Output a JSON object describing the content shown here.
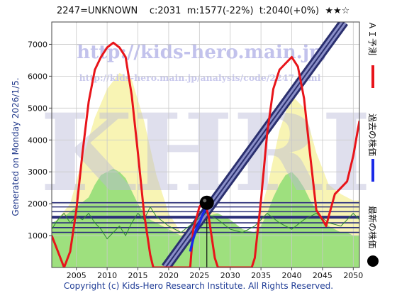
{
  "header": {
    "code": "2247=UNKNOWN",
    "current": "c:2031",
    "median": "m:1577(-22%)",
    "target": "t:2040(+0%)",
    "stars": "★★☆"
  },
  "generated_text": "Generated on Monday 2026/1/5.",
  "copyright": "Copyright (c) Kids-Hero Research Institute. All Rights Reserved.",
  "watermarks": {
    "url_main": "http://kids-hero.main.jp/",
    "url_sub": "http://kids-hero.main.jp/analysis/code/2247.html",
    "logo": "KHRI"
  },
  "legend": {
    "ai_forecast": "ＡＩ予測",
    "past_price": "過去の株価",
    "latest_price": "最新の株価",
    "colors": {
      "ai_forecast": "#e8141a",
      "past_price": "#1a2ae8",
      "latest_price": "#000000"
    }
  },
  "chart_data": {
    "type": "line",
    "xlim": [
      2001,
      2051
    ],
    "ylim": [
      0,
      7700
    ],
    "x_ticks": [
      2005,
      2010,
      2015,
      2020,
      2025,
      2030,
      2035,
      2040,
      2045,
      2050
    ],
    "y_ticks": [
      1000,
      2000,
      3000,
      4000,
      5000,
      6000,
      7000
    ],
    "grid": true,
    "horizontal_levels": [
      2031,
      1577,
      1900,
      1750,
      1400,
      1250,
      1100
    ],
    "vertical_marker_x": 2026.2,
    "latest_point": {
      "x": 2026.2,
      "y": 2031
    },
    "series": [
      {
        "key": "ai_forecast",
        "x": [
          2001,
          2002,
          2003,
          2004,
          2005,
          2006,
          2007,
          2008,
          2009,
          2010,
          2011,
          2012,
          2013,
          2014,
          2015,
          2016,
          2017,
          2017.5,
          2018,
          2023.5,
          2024,
          2025,
          2025.8,
          2026.5,
          2027.5,
          2028,
          2033.5,
          2034,
          2035,
          2036,
          2037,
          2038,
          2039,
          2040,
          2041,
          2042,
          2043,
          2044,
          2045,
          2045.6,
          2046,
          2047,
          2048,
          2049,
          2050,
          2051
        ],
        "y": [
          1000,
          500,
          0,
          500,
          1800,
          3600,
          5200,
          6200,
          6600,
          6900,
          7050,
          6900,
          6600,
          5400,
          3600,
          1700,
          400,
          0,
          0,
          0,
          1200,
          1900,
          2100,
          1600,
          300,
          0,
          0,
          300,
          2100,
          4200,
          5600,
          6200,
          6400,
          6600,
          6300,
          5300,
          3500,
          1800,
          1500,
          1300,
          1600,
          2300,
          2500,
          2700,
          3500,
          4600
        ]
      },
      {
        "key": "past_price",
        "x": [
          2023.5,
          2024,
          2024.5,
          2025,
          2025.5,
          2026,
          2026.2
        ],
        "y": [
          500,
          900,
          1200,
          1400,
          1650,
          1850,
          2031
        ]
      },
      {
        "key": "trend_line",
        "x": [
          2019.5,
          2048.5
        ],
        "y": [
          0,
          7700
        ]
      },
      {
        "key": "green_band_upper",
        "x": [
          2001,
          2003,
          2005,
          2007,
          2008,
          2009,
          2010,
          2011,
          2012,
          2013,
          2014,
          2015,
          2016,
          2017,
          2018,
          2020,
          2022,
          2024,
          2026,
          2028,
          2030,
          2032,
          2034,
          2035,
          2036,
          2037,
          2038,
          2039,
          2040,
          2041,
          2042,
          2043,
          2044,
          2045,
          2046,
          2047,
          2048,
          2049,
          2050,
          2051
        ],
        "y": [
          1400,
          1600,
          1900,
          2200,
          2600,
          2900,
          3000,
          3100,
          3000,
          2800,
          2400,
          2000,
          1700,
          1500,
          1400,
          1200,
          1000,
          1200,
          1600,
          1700,
          1500,
          1200,
          1100,
          1300,
          1700,
          2200,
          2600,
          2900,
          3000,
          2800,
          2500,
          2100,
          1800,
          1500,
          1300,
          1200,
          1100,
          1100,
          1000,
          1000
        ]
      },
      {
        "key": "yellow_band_upper",
        "x": [
          2001,
          2004,
          2006,
          2008,
          2010,
          2012,
          2014,
          2016,
          2018,
          2020,
          2022,
          2024,
          2026,
          2028,
          2030,
          2032,
          2034,
          2036,
          2038,
          2040,
          2042,
          2044,
          2046,
          2048,
          2050,
          2051
        ],
        "y": [
          1300,
          2000,
          3400,
          4700,
          5600,
          6100,
          5900,
          4600,
          2900,
          1700,
          1100,
          1300,
          1800,
          1700,
          1300,
          900,
          1100,
          2500,
          4300,
          5400,
          5000,
          3600,
          2600,
          2300,
          2100,
          2100
        ]
      },
      {
        "key": "thin_green_line",
        "x": [
          2001,
          2002,
          2003,
          2004,
          2005,
          2006,
          2007,
          2008,
          2009,
          2010,
          2011,
          2012,
          2013,
          2014,
          2015,
          2016,
          2017,
          2018,
          2020,
          2022,
          2024,
          2026,
          2028,
          2030,
          2032,
          2034,
          2036,
          2038,
          2040,
          2042,
          2044,
          2046,
          2048,
          2050,
          2051
        ],
        "y": [
          1200,
          1500,
          1700,
          1400,
          1600,
          1500,
          1700,
          1400,
          1200,
          900,
          1100,
          1300,
          1000,
          1400,
          1700,
          1500,
          1900,
          1600,
          1300,
          1100,
          1400,
          1700,
          1500,
          1200,
          1100,
          1300,
          1700,
          1400,
          1200,
          1500,
          1700,
          1400,
          1300,
          1700,
          1500
        ]
      }
    ]
  }
}
